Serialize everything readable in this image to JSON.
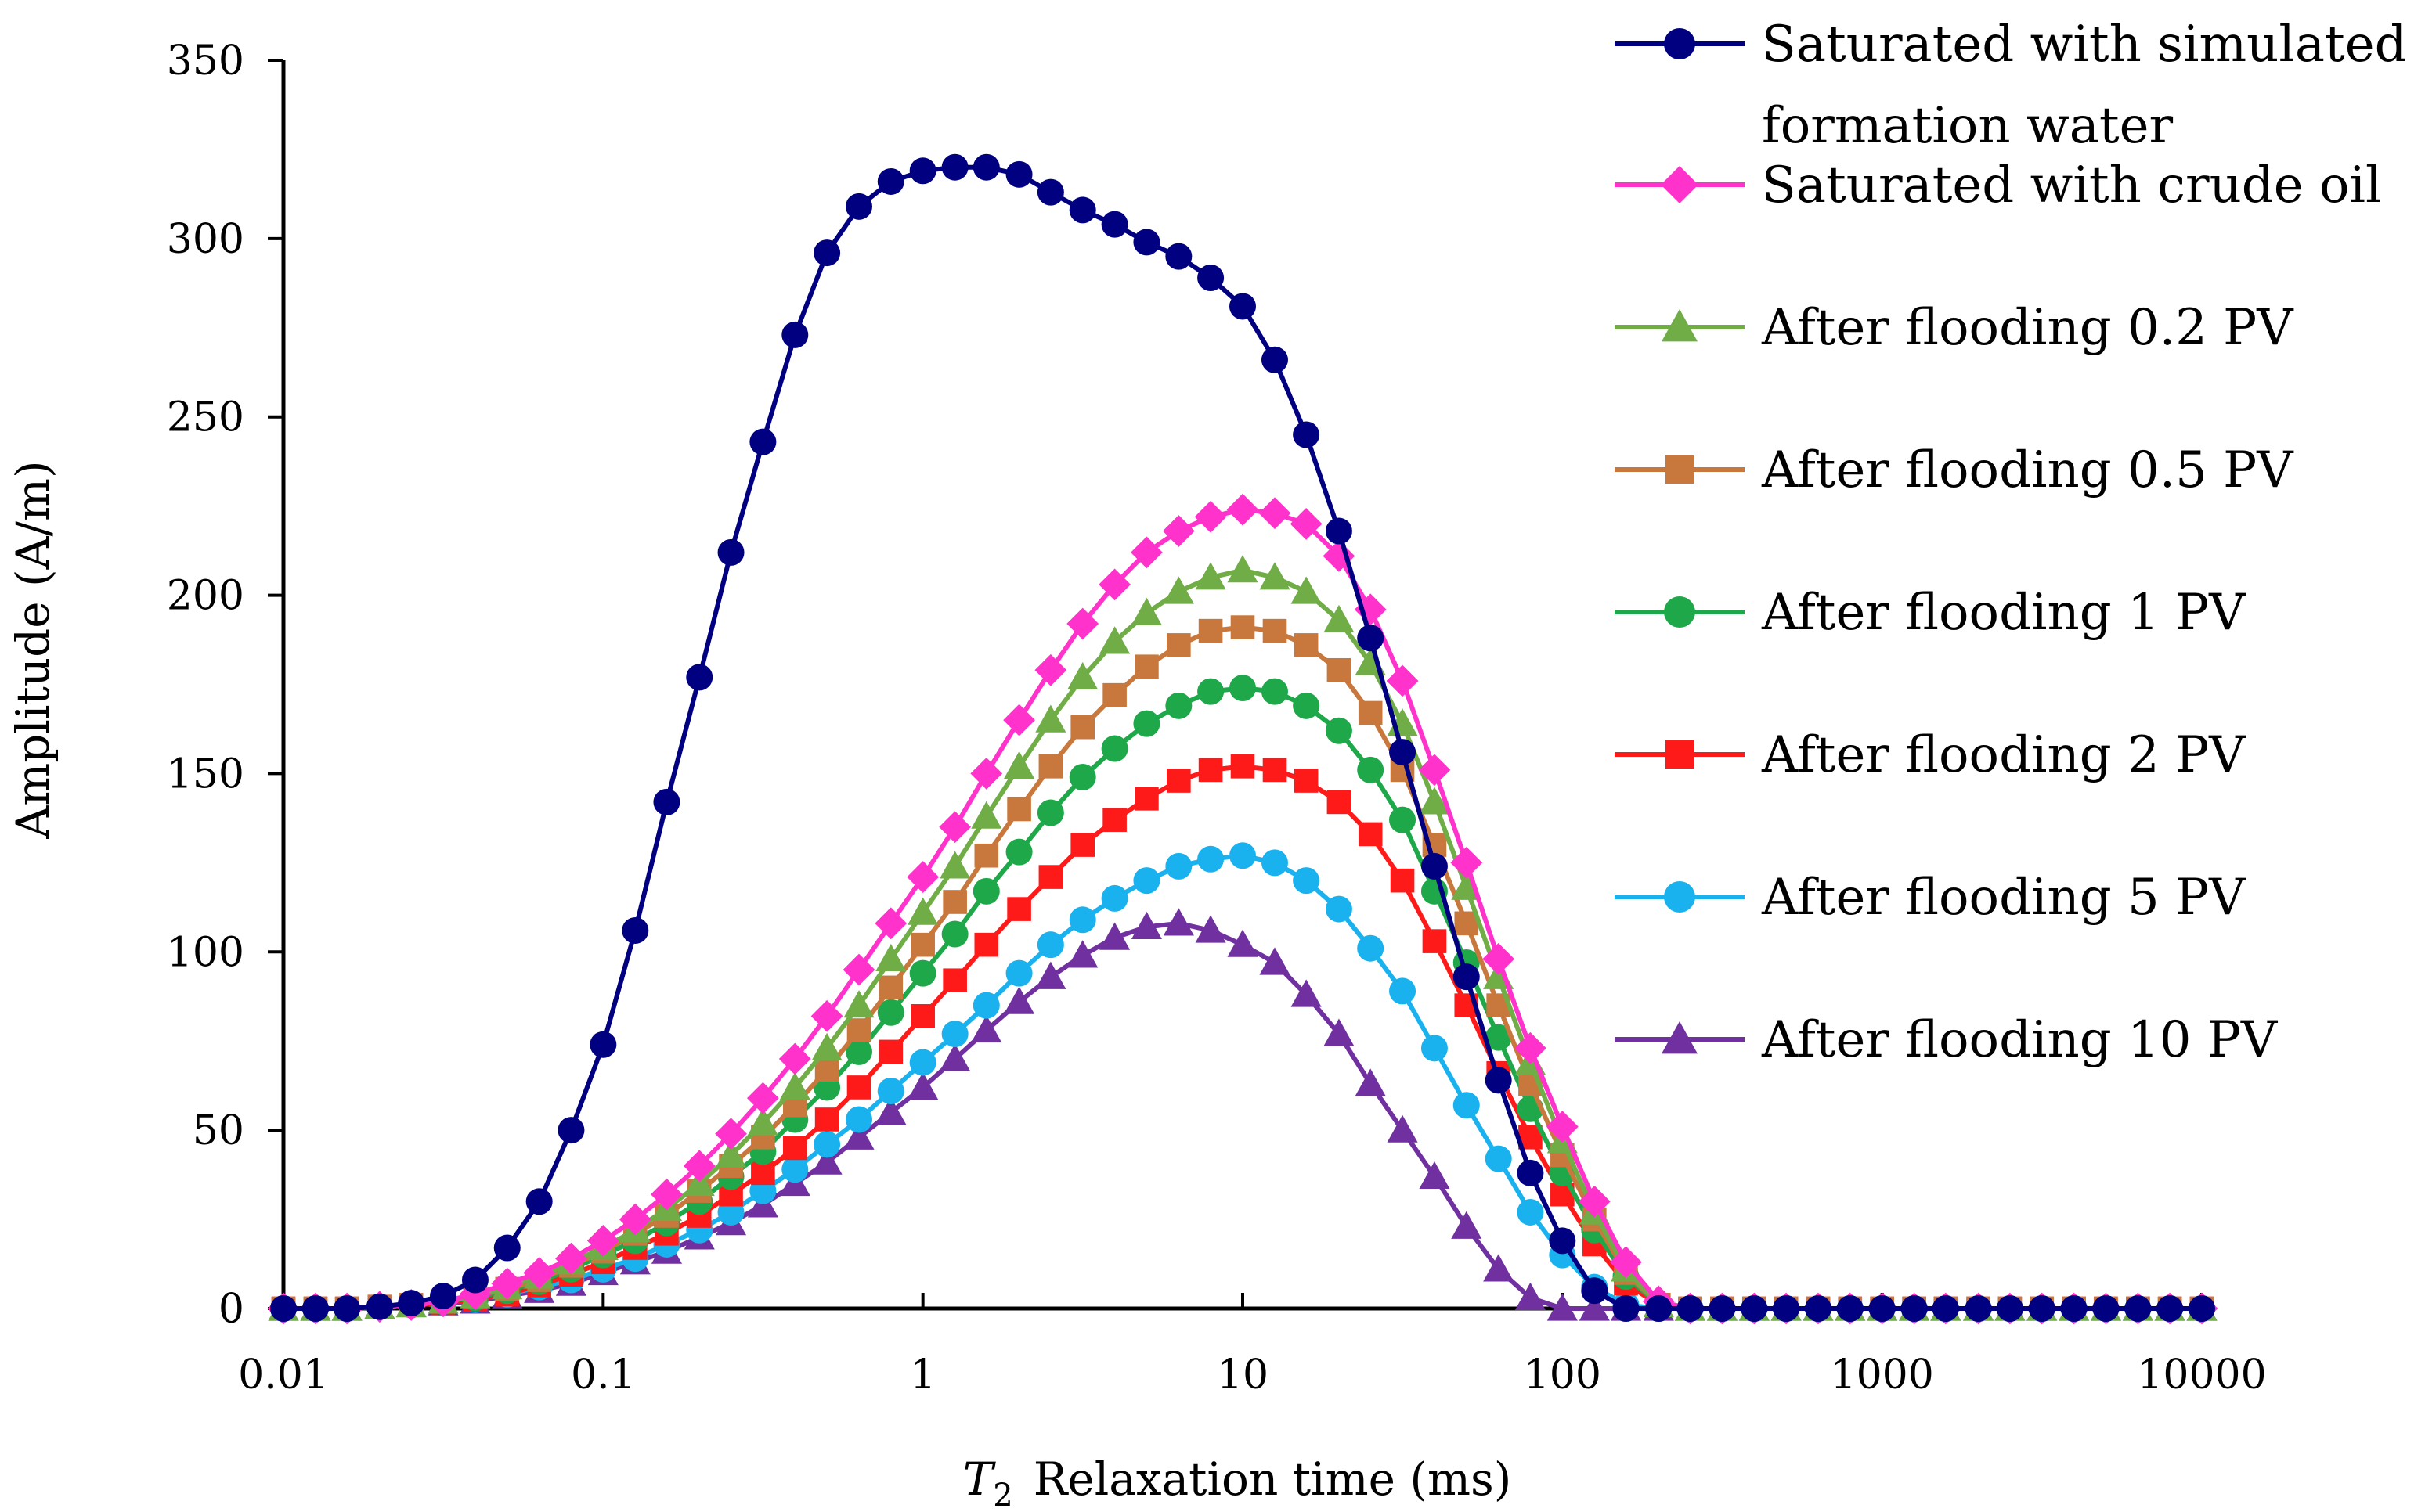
{
  "chart_data": {
    "type": "line",
    "xscale": "log",
    "xlim": [
      0.01,
      10000
    ],
    "ylim": [
      0,
      350
    ],
    "xticks": [
      0.01,
      0.1,
      1,
      10,
      100,
      1000,
      10000
    ],
    "xtick_labels": [
      "0.01",
      "0.1",
      "1",
      "10",
      "100",
      "1000",
      "10000"
    ],
    "yticks": [
      0,
      50,
      100,
      150,
      200,
      250,
      300,
      350
    ],
    "ytick_labels": [
      "0",
      "50",
      "100",
      "150",
      "200",
      "250",
      "300",
      "350"
    ],
    "xlabel_italic": "T",
    "xlabel_sub": "2",
    "xlabel_rest": "Relaxation time (ms)",
    "ylabel": "Amplitude (A/m)",
    "grid": false,
    "legend_position": "right",
    "series": [
      {
        "name": "Saturated with simulated formation water",
        "name_lines": [
          "Saturated with simulated",
          "formation water"
        ],
        "color": "#000080",
        "marker": "circle",
        "x": [
          0.01,
          0.0126,
          0.0158,
          0.02,
          0.0251,
          0.0316,
          0.0398,
          0.0501,
          0.0631,
          0.0794,
          0.1,
          0.126,
          0.158,
          0.2,
          0.251,
          0.316,
          0.398,
          0.501,
          0.631,
          0.794,
          1,
          1.26,
          1.58,
          2,
          2.51,
          3.16,
          3.98,
          5.01,
          6.31,
          7.94,
          10,
          12.6,
          15.8,
          20,
          25.1,
          31.6,
          39.8,
          50.1,
          63.1,
          79.4,
          100,
          126,
          158,
          200,
          251,
          316,
          398,
          501,
          631,
          794,
          1000,
          1260,
          1580,
          2000,
          2510,
          3160,
          3980,
          5010,
          6310,
          7940,
          10000
        ],
        "y": [
          0,
          0,
          0,
          0.5,
          1.5,
          3.5,
          8,
          17,
          30,
          50,
          74,
          106,
          142,
          177,
          212,
          243,
          273,
          296,
          309,
          316,
          319,
          320,
          320,
          318,
          313,
          308,
          304,
          299,
          295,
          289,
          281,
          266,
          245,
          218,
          188,
          156,
          124,
          93,
          64,
          38,
          19,
          5,
          0,
          0,
          0,
          0,
          0,
          0,
          0,
          0,
          0,
          0,
          0,
          0,
          0,
          0,
          0,
          0,
          0,
          0,
          0
        ]
      },
      {
        "name": "Saturated with crude oil",
        "name_lines": [
          "Saturated with crude oil"
        ],
        "color": "#ff33cc",
        "marker": "diamond",
        "x": [
          0.01,
          0.0126,
          0.0158,
          0.02,
          0.0251,
          0.0316,
          0.0398,
          0.0501,
          0.0631,
          0.0794,
          0.1,
          0.126,
          0.158,
          0.2,
          0.251,
          0.316,
          0.398,
          0.501,
          0.631,
          0.794,
          1,
          1.26,
          1.58,
          2,
          2.51,
          3.16,
          3.98,
          5.01,
          6.31,
          7.94,
          10,
          12.6,
          15.8,
          20,
          25.1,
          31.6,
          39.8,
          50.1,
          63.1,
          79.4,
          100,
          126,
          158,
          200,
          251,
          316,
          398,
          501,
          631,
          794,
          1000,
          1260,
          1580,
          2000,
          2510,
          3160,
          3980,
          5010,
          6310,
          7940,
          10000
        ],
        "y": [
          0,
          0,
          0,
          0.5,
          1,
          2,
          4,
          7,
          10,
          14,
          19,
          25,
          32,
          40,
          49,
          59,
          70,
          82,
          95,
          108,
          121,
          135,
          150,
          165,
          179,
          192,
          203,
          212,
          218,
          222,
          224,
          223,
          220,
          211,
          196,
          176,
          151,
          125,
          98,
          73,
          51,
          30,
          13,
          2,
          0,
          0,
          0,
          0,
          0,
          0,
          0,
          0,
          0,
          0,
          0,
          0,
          0,
          0,
          0,
          0,
          0
        ]
      },
      {
        "name": "After flooding 0.2 PV",
        "name_lines": [
          "After flooding 0.2 PV"
        ],
        "color": "#70ad47",
        "marker": "triangle",
        "x": [
          0.01,
          0.0126,
          0.0158,
          0.02,
          0.0251,
          0.0316,
          0.0398,
          0.0501,
          0.0631,
          0.0794,
          0.1,
          0.126,
          0.158,
          0.2,
          0.251,
          0.316,
          0.398,
          0.501,
          0.631,
          0.794,
          1,
          1.26,
          1.58,
          2,
          2.51,
          3.16,
          3.98,
          5.01,
          6.31,
          7.94,
          10,
          12.6,
          15.8,
          20,
          25.1,
          31.6,
          39.8,
          50.1,
          63.1,
          79.4,
          100,
          126,
          158,
          200,
          251,
          316,
          398,
          501,
          631,
          794,
          1000,
          1260,
          1580,
          2000,
          2510,
          3160,
          3980,
          5010,
          6310,
          7940,
          10000
        ],
        "y": [
          0,
          0,
          0,
          0.5,
          1,
          2,
          3.5,
          6,
          9,
          13,
          17,
          22,
          28,
          35,
          43,
          52,
          62,
          73,
          85,
          98,
          111,
          124,
          138,
          152,
          165,
          177,
          187,
          195,
          201,
          205,
          207,
          205,
          201,
          193,
          181,
          164,
          142,
          118,
          93,
          69,
          47,
          27,
          11,
          1,
          0,
          0,
          0,
          0,
          0,
          0,
          0,
          0,
          0,
          0,
          0,
          0,
          0,
          0,
          0,
          0,
          0
        ]
      },
      {
        "name": "After flooding 0.5 PV",
        "name_lines": [
          "After flooding 0.5 PV"
        ],
        "color": "#c8783c",
        "marker": "square",
        "x": [
          0.01,
          0.0126,
          0.0158,
          0.02,
          0.0251,
          0.0316,
          0.0398,
          0.0501,
          0.0631,
          0.0794,
          0.1,
          0.126,
          0.158,
          0.2,
          0.251,
          0.316,
          0.398,
          0.501,
          0.631,
          0.794,
          1,
          1.26,
          1.58,
          2,
          2.51,
          3.16,
          3.98,
          5.01,
          6.31,
          7.94,
          10,
          12.6,
          15.8,
          20,
          25.1,
          31.6,
          39.8,
          50.1,
          63.1,
          79.4,
          100,
          126,
          158,
          200,
          251,
          316,
          398,
          501,
          631,
          794,
          1000,
          1260,
          1580,
          2000,
          2510,
          3160,
          3980,
          5010,
          6310,
          7940,
          10000
        ],
        "y": [
          0,
          0,
          0,
          0.5,
          1,
          2,
          3.5,
          5.5,
          8,
          12,
          16,
          21,
          26,
          33,
          40,
          48,
          57,
          67,
          78,
          90,
          102,
          114,
          127,
          140,
          152,
          163,
          172,
          180,
          186,
          190,
          191,
          190,
          186,
          179,
          167,
          151,
          130,
          108,
          85,
          63,
          43,
          25,
          10,
          1,
          0,
          0,
          0,
          0,
          0,
          0,
          0,
          0,
          0,
          0,
          0,
          0,
          0,
          0,
          0,
          0,
          0
        ]
      },
      {
        "name": "After flooding 1 PV",
        "name_lines": [
          "After flooding 1 PV"
        ],
        "color": "#1ea84a",
        "marker": "circle",
        "x": [
          0.01,
          0.0126,
          0.0158,
          0.02,
          0.0251,
          0.0316,
          0.0398,
          0.0501,
          0.0631,
          0.0794,
          0.1,
          0.126,
          0.158,
          0.2,
          0.251,
          0.316,
          0.398,
          0.501,
          0.631,
          0.794,
          1,
          1.26,
          1.58,
          2,
          2.51,
          3.16,
          3.98,
          5.01,
          6.31,
          7.94,
          10,
          12.6,
          15.8,
          20,
          25.1,
          31.6,
          39.8,
          50.1,
          63.1,
          79.4,
          100,
          126,
          158,
          200,
          251,
          316,
          398,
          501,
          631,
          794,
          1000,
          1260,
          1580,
          2000,
          2510,
          3160,
          3980,
          5010,
          6310,
          7940,
          10000
        ],
        "y": [
          0,
          0,
          0,
          0.5,
          1,
          2,
          3,
          5,
          7.5,
          11,
          15,
          19,
          24,
          30,
          37,
          44,
          53,
          62,
          72,
          83,
          94,
          105,
          117,
          128,
          139,
          149,
          157,
          164,
          169,
          173,
          174,
          173,
          169,
          162,
          151,
          137,
          117,
          97,
          76,
          56,
          38,
          22,
          9,
          1,
          0,
          0,
          0,
          0,
          0,
          0,
          0,
          0,
          0,
          0,
          0,
          0,
          0,
          0,
          0,
          0,
          0
        ]
      },
      {
        "name": "After flooding 2 PV",
        "name_lines": [
          "After flooding 2 PV"
        ],
        "color": "#ff1a1a",
        "marker": "square",
        "x": [
          0.01,
          0.0126,
          0.0158,
          0.02,
          0.0251,
          0.0316,
          0.0398,
          0.0501,
          0.0631,
          0.0794,
          0.1,
          0.126,
          0.158,
          0.2,
          0.251,
          0.316,
          0.398,
          0.501,
          0.631,
          0.794,
          1,
          1.26,
          1.58,
          2,
          2.51,
          3.16,
          3.98,
          5.01,
          6.31,
          7.94,
          10,
          12.6,
          15.8,
          20,
          25.1,
          31.6,
          39.8,
          50.1,
          63.1,
          79.4,
          100,
          126,
          158,
          200,
          251,
          316,
          398,
          501,
          631,
          794,
          1000,
          1260,
          1580,
          2000,
          2510,
          3160,
          3980,
          5010,
          6310,
          7940,
          10000
        ],
        "y": [
          0,
          0,
          0,
          0.5,
          1,
          1.5,
          2.5,
          4,
          6.5,
          9.5,
          13,
          17,
          21,
          26,
          32,
          38,
          45,
          53,
          62,
          72,
          82,
          92,
          102,
          112,
          121,
          130,
          137,
          143,
          148,
          151,
          152,
          151,
          148,
          142,
          133,
          120,
          103,
          85,
          66,
          48,
          32,
          18,
          7,
          1,
          0,
          0,
          0,
          0,
          0,
          0,
          0,
          0,
          0,
          0,
          0,
          0,
          0,
          0,
          0,
          0,
          0
        ]
      },
      {
        "name": "After flooding 5 PV",
        "name_lines": [
          "After flooding 5 PV"
        ],
        "color": "#1ab2ee",
        "marker": "circle",
        "x": [
          0.01,
          0.0126,
          0.0158,
          0.02,
          0.0251,
          0.0316,
          0.0398,
          0.0501,
          0.0631,
          0.0794,
          0.1,
          0.126,
          0.158,
          0.2,
          0.251,
          0.316,
          0.398,
          0.501,
          0.631,
          0.794,
          1,
          1.26,
          1.58,
          2,
          2.51,
          3.16,
          3.98,
          5.01,
          6.31,
          7.94,
          10,
          12.6,
          15.8,
          20,
          25.1,
          31.6,
          39.8,
          50.1,
          63.1,
          79.4,
          100,
          126,
          158,
          200,
          251,
          316,
          398,
          501,
          631,
          794,
          1000,
          1260,
          1580,
          2000,
          2510,
          3160,
          3980,
          5010,
          6310,
          7940,
          10000
        ],
        "y": [
          0,
          0,
          0,
          0.5,
          1,
          1.5,
          2.5,
          4,
          6,
          8,
          11,
          14,
          18,
          22,
          27,
          33,
          39,
          46,
          53,
          61,
          69,
          77,
          85,
          94,
          102,
          109,
          115,
          120,
          124,
          126,
          127,
          125,
          120,
          112,
          101,
          89,
          73,
          57,
          42,
          27,
          15,
          6,
          1,
          0,
          0,
          0,
          0,
          0,
          0,
          0,
          0,
          0,
          0,
          0,
          0,
          0,
          0,
          0,
          0,
          0,
          0
        ]
      },
      {
        "name": "After flooding 10 PV",
        "name_lines": [
          "After flooding 10 PV"
        ],
        "color": "#7030a0",
        "marker": "triangle",
        "x": [
          0.01,
          0.0126,
          0.0158,
          0.02,
          0.0251,
          0.0316,
          0.0398,
          0.0501,
          0.0631,
          0.0794,
          0.1,
          0.126,
          0.158,
          0.2,
          0.251,
          0.316,
          0.398,
          0.501,
          0.631,
          0.794,
          1,
          1.26,
          1.58,
          2,
          2.51,
          3.16,
          3.98,
          5.01,
          6.31,
          7.94,
          10,
          12.6,
          15.8,
          20,
          25.1,
          31.6,
          39.8,
          50.1,
          63.1,
          79.4,
          100,
          126,
          158,
          200,
          251,
          316,
          398,
          501,
          631,
          794,
          1000,
          1260,
          1580,
          2000,
          2510,
          3160,
          3980,
          5010,
          6310,
          7940,
          10000
        ],
        "y": [
          0,
          0,
          0,
          0.5,
          1,
          1.5,
          2,
          3.5,
          5,
          7,
          10,
          13,
          16,
          20,
          24,
          29,
          35,
          41,
          48,
          55,
          62,
          70,
          78,
          86,
          93,
          99,
          104,
          107,
          108,
          106,
          102,
          97,
          88,
          77,
          63,
          50,
          37,
          23,
          11,
          3,
          0,
          0,
          0,
          0,
          0,
          0,
          0,
          0,
          0,
          0,
          0,
          0,
          0,
          0,
          0,
          0,
          0,
          0,
          0,
          0,
          0
        ]
      }
    ]
  }
}
